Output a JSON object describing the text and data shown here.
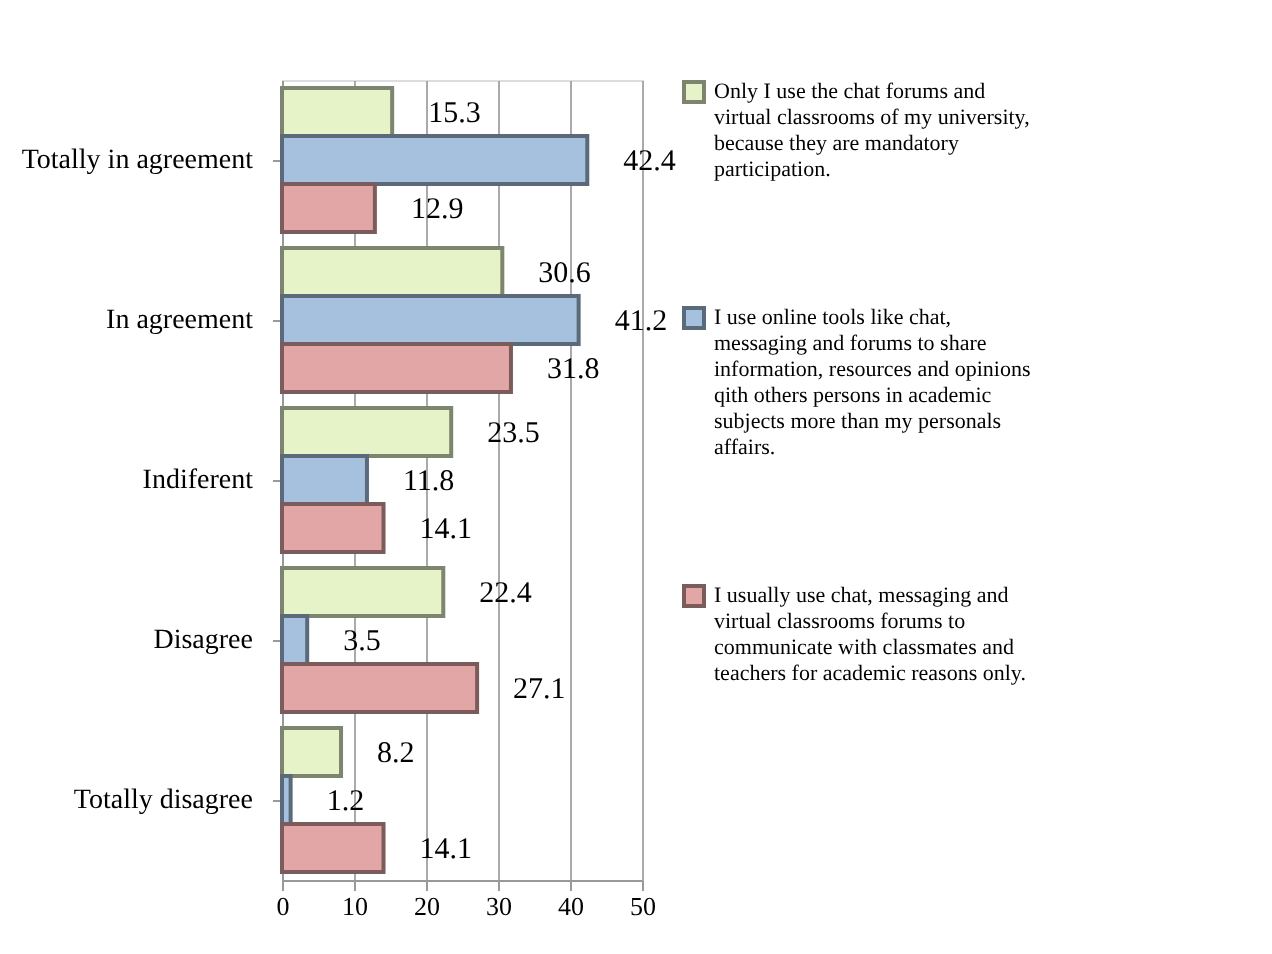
{
  "chart_data": {
    "type": "bar",
    "orientation": "horizontal",
    "categories": [
      "Totally in agreement",
      "In agreement",
      "Indiferent",
      "Disagree",
      "Totally disagree"
    ],
    "series": [
      {
        "name": "Only I use the chat forums and virtual classrooms of my university, because they are mandatory participation.",
        "color": "#e6f2c8",
        "values": [
          15.3,
          30.6,
          23.5,
          22.4,
          8.2
        ]
      },
      {
        "name": "I use online tools like chat, messaging and forums to share information, resources and opinions qith others persons in academic subjects more than my personals affairs.",
        "color": "#a6c1de",
        "values": [
          42.4,
          41.2,
          11.8,
          3.5,
          1.2
        ]
      },
      {
        "name": "I usually use chat, messaging and virtual classrooms forums to communicate with classmates and teachers for academic reasons only.",
        "color": "#e3a6a6",
        "values": [
          12.9,
          31.8,
          14.1,
          27.1,
          14.1
        ]
      }
    ],
    "xlim": [
      0,
      50
    ],
    "xticks": [
      0,
      10,
      20,
      30,
      40,
      50
    ],
    "grid": "x",
    "legend": "right",
    "data_labels": true
  }
}
